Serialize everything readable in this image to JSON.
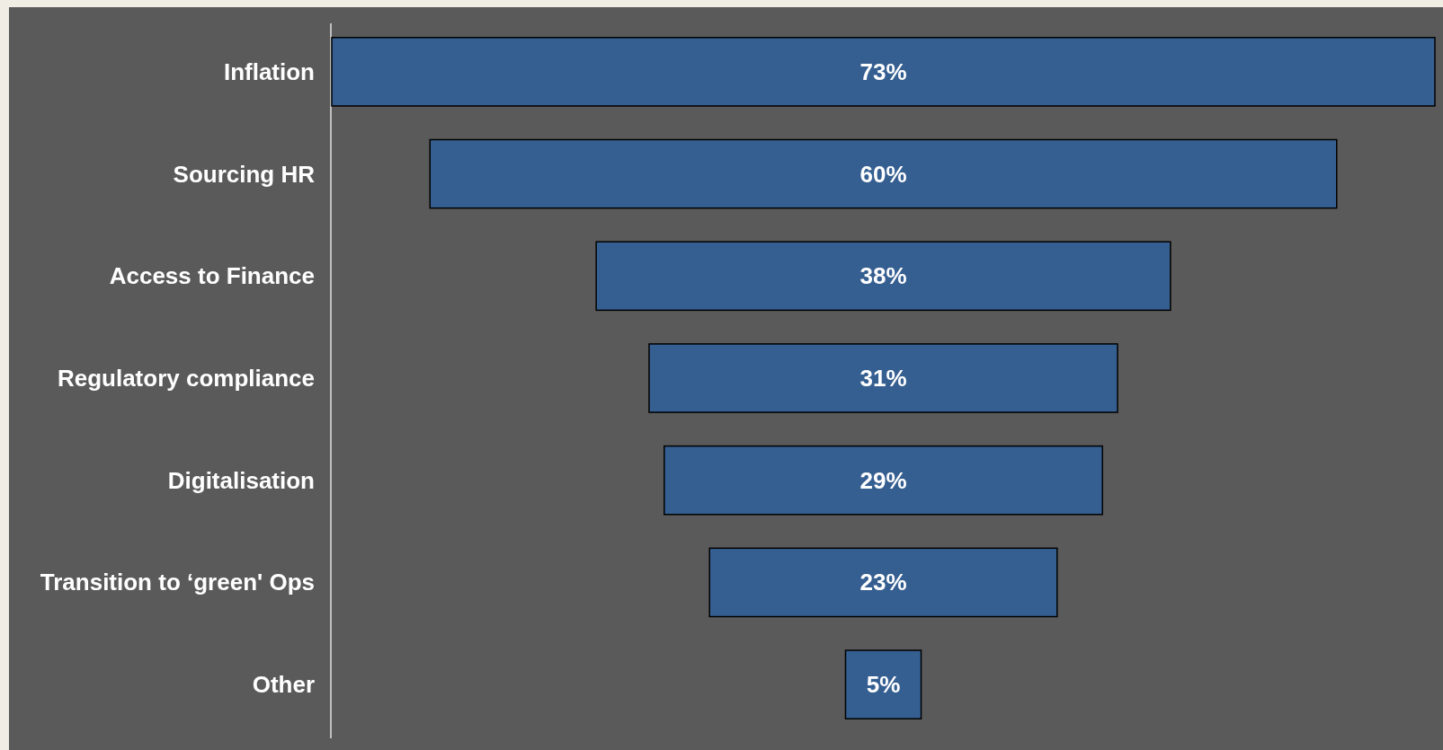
{
  "chart_data": {
    "type": "other",
    "categories": [
      "Inflation",
      "Sourcing HR",
      "Access to Finance",
      "Regulatory compliance",
      "Digitalisation",
      "Transition to ‘green' Ops",
      "Other"
    ],
    "values": [
      73,
      60,
      38,
      31,
      29,
      23,
      5
    ],
    "value_labels": [
      "73%",
      "60%",
      "38%",
      "31%",
      "29%",
      "23%",
      "5%"
    ],
    "color": "#365f91"
  }
}
